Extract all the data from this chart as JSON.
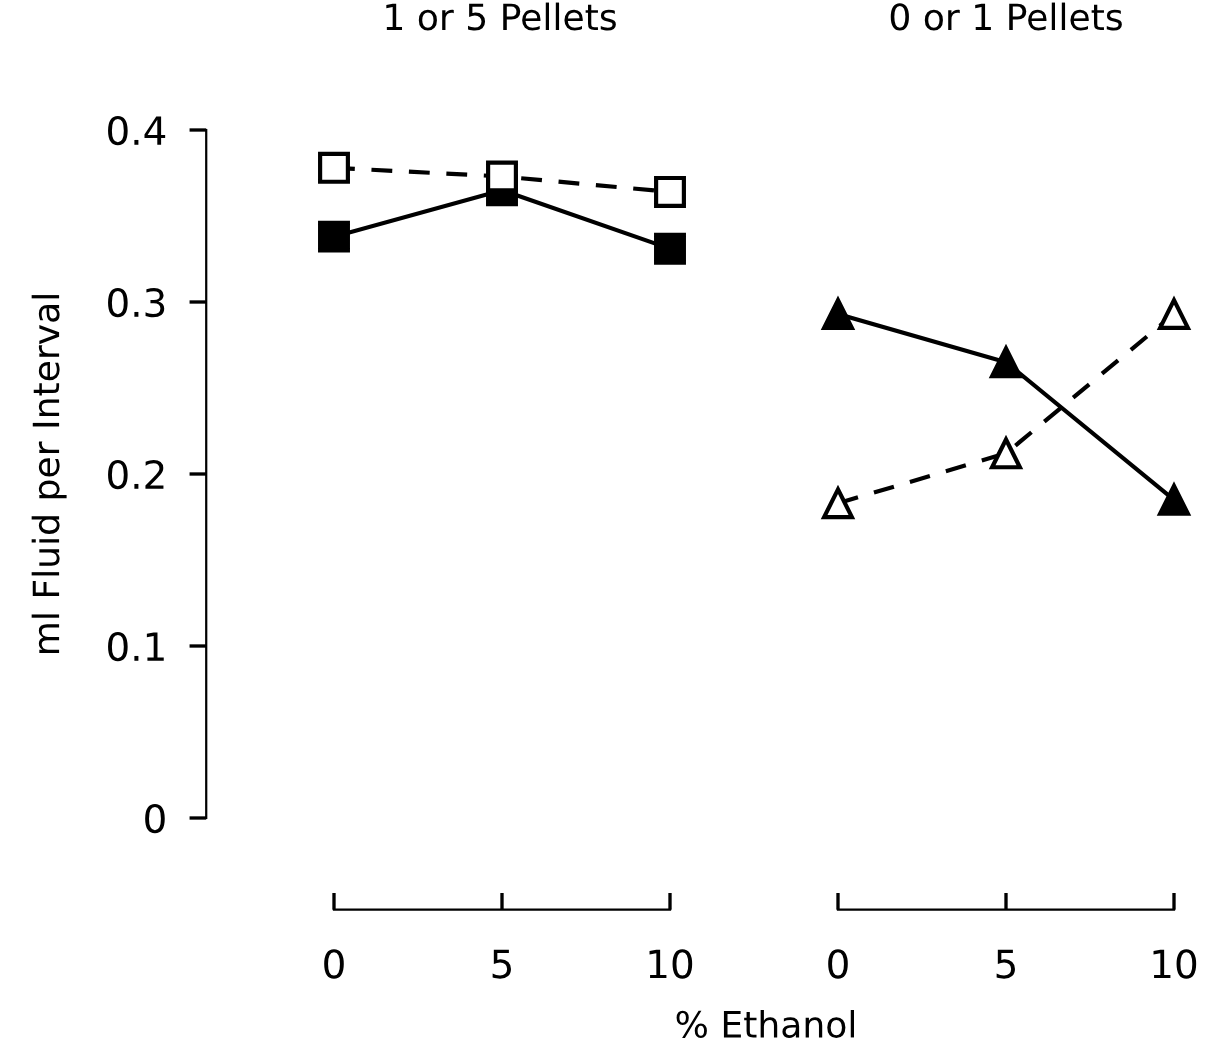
{
  "chart_data": [
    {
      "type": "line",
      "title": "1 or 5 Pellets",
      "ylabel": "ml Fluid per Interval",
      "xlabel": "% Ethanol",
      "x": [
        0,
        5,
        10
      ],
      "xlim": [
        0,
        10
      ],
      "xticks": [
        0,
        5,
        10
      ],
      "ylim": [
        0,
        0.4
      ],
      "yticks": [
        0,
        0.1,
        0.2,
        0.3,
        0.4
      ],
      "grid": false,
      "series": [
        {
          "color": "#000000",
          "marker": "square",
          "line_style": "dashed",
          "values": [
            0.378,
            0.373,
            0.364
          ]
        },
        {
          "color": "#000000",
          "marker": "square",
          "line_style": "solid",
          "values": [
            0.338,
            0.365,
            0.331
          ]
        }
      ]
    },
    {
      "type": "line",
      "title": "0 or 1 Pellets",
      "x": [
        0,
        5,
        10
      ],
      "xlim": [
        0,
        10
      ],
      "xticks": [
        0,
        5,
        10
      ],
      "ylim": [
        0,
        0.4
      ],
      "yticks": [
        0,
        0.1,
        0.2,
        0.3,
        0.4
      ],
      "tick_labels": "x",
      "grid": false,
      "series": [
        {
          "color": "#000000",
          "marker": "triangle",
          "line_style": "solid",
          "values": [
            0.293,
            0.265,
            0.185
          ]
        },
        {
          "color": "#000000",
          "marker": "triangle",
          "line_style": "dashed",
          "values": [
            0.183,
            0.212,
            0.293
          ]
        }
      ]
    }
  ]
}
